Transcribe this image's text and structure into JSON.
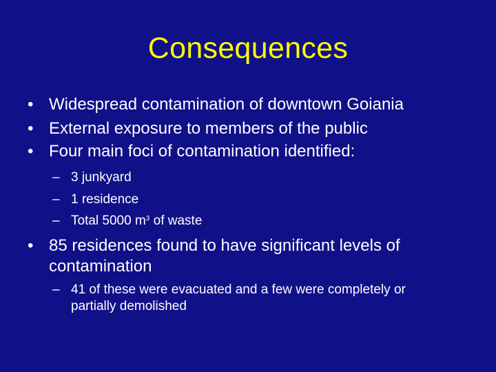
{
  "slide": {
    "title": "Consequences",
    "bullets": [
      {
        "marker": "•",
        "text": "Widespread contamination of downtown Goiania"
      },
      {
        "marker": "•",
        "text": "External exposure to members of the public"
      },
      {
        "marker": "•",
        "text": "Four main foci of contamination identified:"
      },
      {
        "marker": "•",
        "text": "85 residences found to have significant levels of contamination"
      }
    ],
    "sub_bullets": [
      {
        "marker": "–",
        "text": "3 junkyard"
      },
      {
        "marker": "–",
        "text": "1 residence"
      },
      {
        "marker": "–",
        "text_before": "Total 5000 m",
        "superscript": "3",
        "text_after": " of waste"
      },
      {
        "marker": "–",
        "text": "41 of these were evacuated and a few were completely or partially demolished"
      }
    ]
  },
  "colors": {
    "background": "#101089",
    "title": "#ffff00",
    "text": "#ffffff"
  }
}
